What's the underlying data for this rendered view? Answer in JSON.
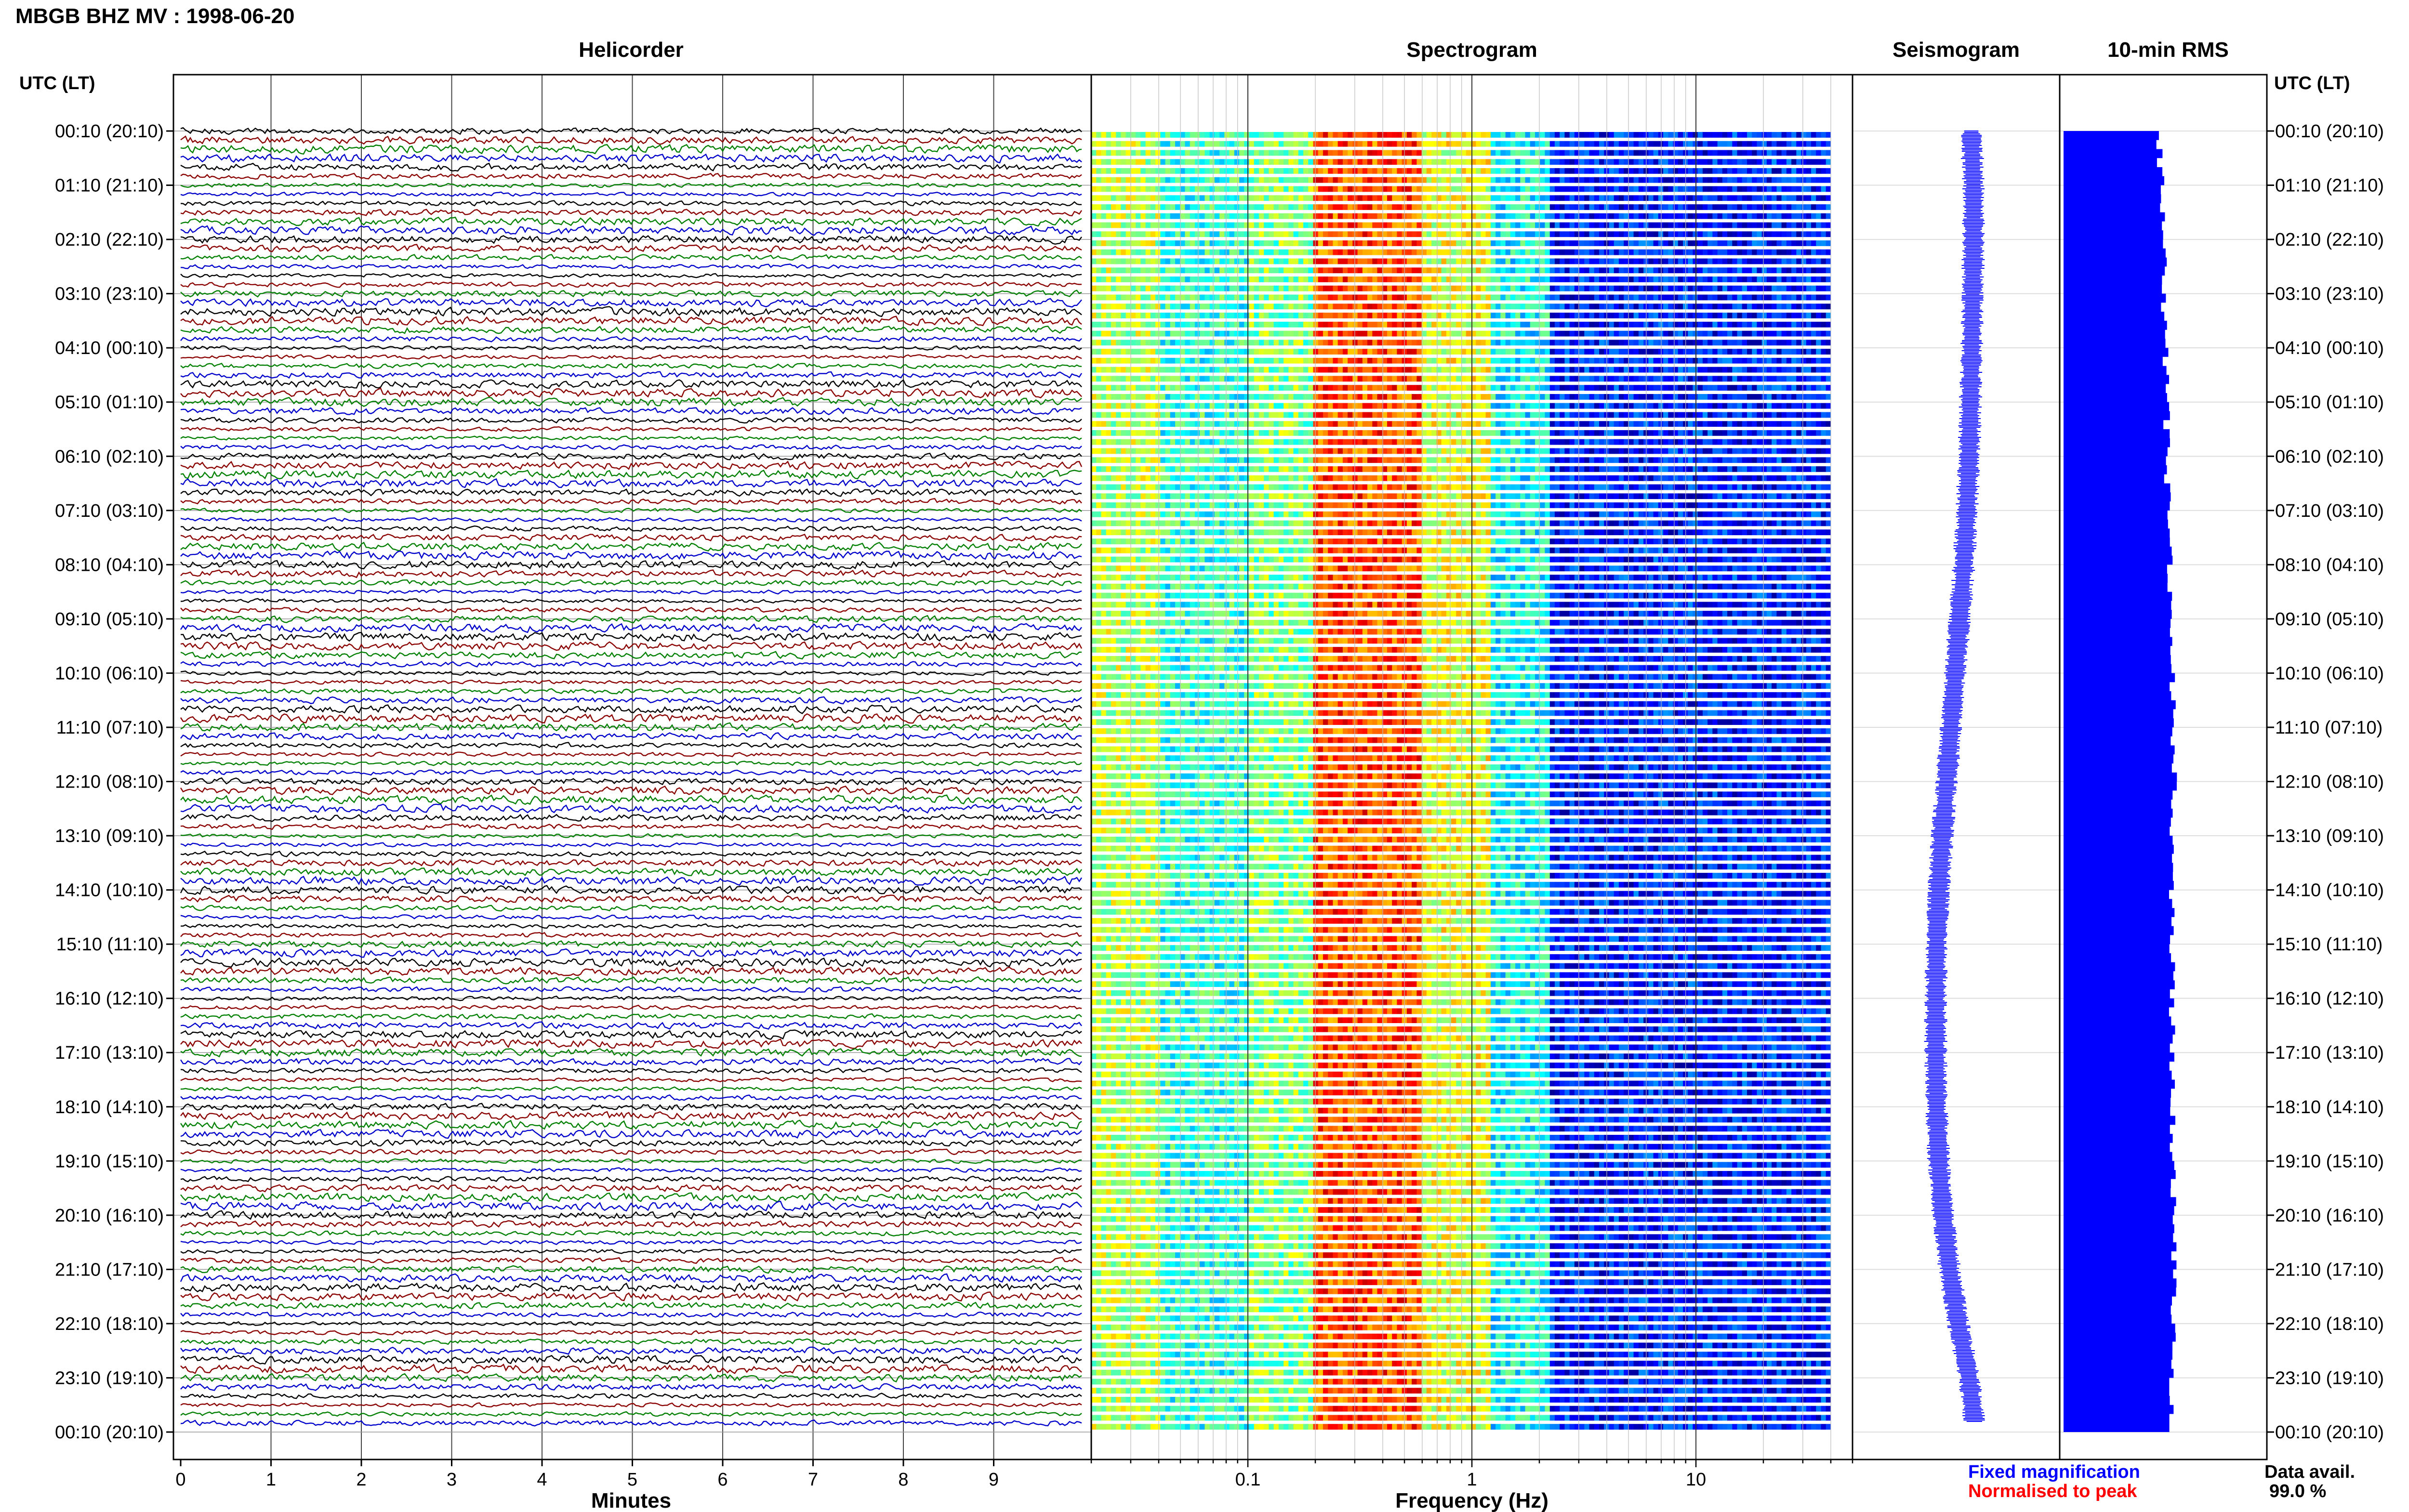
{
  "header": {
    "title": "MBGB BHZ MV : 1998-06-20",
    "time_axis_label": "UTC (LT)"
  },
  "panels": {
    "helicorder": "Helicorder",
    "spectrogram": "Spectrogram",
    "seismogram": "Seismogram",
    "rms": "10-min RMS"
  },
  "time_labels": [
    "00:10 (20:10)",
    "01:10 (21:10)",
    "02:10 (22:10)",
    "03:10 (23:10)",
    "04:10 (00:10)",
    "05:10 (01:10)",
    "06:10 (02:10)",
    "07:10 (03:10)",
    "08:10 (04:10)",
    "09:10 (05:10)",
    "10:10 (06:10)",
    "11:10 (07:10)",
    "12:10 (08:10)",
    "13:10 (09:10)",
    "14:10 (10:10)",
    "15:10 (11:10)",
    "16:10 (12:10)",
    "17:10 (13:10)",
    "18:10 (14:10)",
    "19:10 (15:10)",
    "20:10 (16:10)",
    "21:10 (17:10)",
    "22:10 (18:10)",
    "23:10 (19:10)",
    "00:10 (20:10)"
  ],
  "legend": {
    "fixed": "Fixed magnification",
    "normalised": "Normalised to peak",
    "avail_label": "Data avail.",
    "avail_value": "99.0 %"
  },
  "colors": {
    "fixed": "#0000ff",
    "normalised": "#ff0000",
    "trace_cycle": [
      "#000000",
      "#8b0000",
      "#008000",
      "#0000cd"
    ],
    "rms_bar": "#0000ff",
    "seismogram": "#0000ff"
  },
  "chart_data": [
    {
      "type": "line",
      "title": "Helicorder",
      "xlabel": "Minutes",
      "x_ticks": [
        "0",
        "1",
        "2",
        "3",
        "4",
        "5",
        "6",
        "7",
        "8",
        "9"
      ],
      "xlim": [
        0,
        10
      ],
      "rows_per_hour": 6,
      "hours": 24,
      "grid": true
    },
    {
      "type": "heatmap",
      "title": "Spectrogram",
      "xlabel": "Frequency (Hz)",
      "x_scale": "log",
      "x_ticks": [
        "0.1",
        "1",
        "10"
      ],
      "xlim": [
        0.02,
        50
      ],
      "colormap": "jet",
      "band_energy": [
        {
          "freq_hz": [
            0.02,
            0.04
          ],
          "level": 0.55
        },
        {
          "freq_hz": [
            0.04,
            0.1
          ],
          "level": 0.42
        },
        {
          "freq_hz": [
            0.1,
            0.2
          ],
          "level": 0.5
        },
        {
          "freq_hz": [
            0.2,
            0.6
          ],
          "level": 0.8
        },
        {
          "freq_hz": [
            0.6,
            1.2
          ],
          "level": 0.6
        },
        {
          "freq_hz": [
            1.2,
            2.2
          ],
          "level": 0.38
        },
        {
          "freq_hz": [
            2.2,
            40
          ],
          "level": 0.15
        }
      ]
    },
    {
      "type": "line",
      "title": "Seismogram",
      "series": [
        {
          "values": [
            0.85,
            0.9,
            0.9,
            0.88,
            0.86,
            0.83,
            0.8,
            0.75,
            0.68,
            0.58,
            0.48,
            0.38,
            0.28,
            0.18,
            0.1,
            0.05,
            0.03,
            0.03,
            0.05,
            0.1,
            0.2,
            0.35,
            0.55,
            0.8,
            0.95
          ]
        }
      ]
    },
    {
      "type": "bar",
      "title": "10-min RMS",
      "orientation": "horizontal",
      "series": [
        {
          "values": [
            0.85,
            0.88,
            0.9,
            0.9,
            0.92,
            0.93,
            0.93,
            0.94,
            0.96,
            0.96,
            0.98,
            1.0,
            1.0,
            0.98,
            0.98,
            0.98,
            0.98,
            0.98,
            0.98,
            0.99,
            1.0,
            1.0,
            1.0,
            0.98,
            0.97
          ]
        }
      ]
    }
  ]
}
